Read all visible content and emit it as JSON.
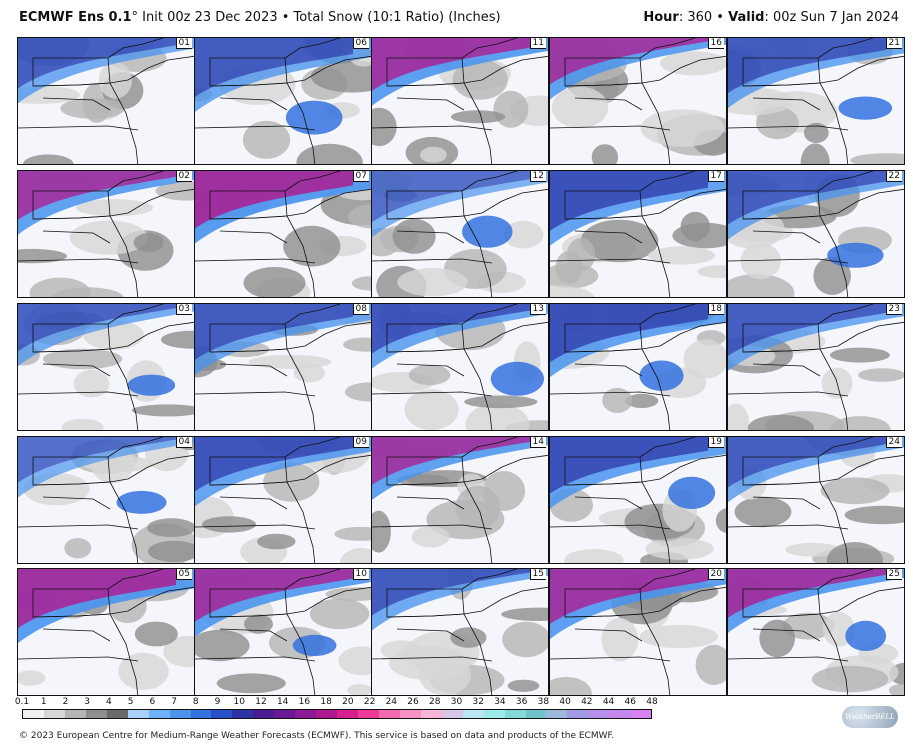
{
  "header": {
    "model": "ECMWF Ens 0.1",
    "degree": "°",
    "init_text": " Init 00z 23 Dec 2023 • Total Snow (10:1 Ratio) (Inches)",
    "hour_label": "Hour",
    "hour_value": ": 360 • ",
    "valid_label": "Valid",
    "valid_value": ": 00z Sun 7 Jan 2024"
  },
  "members": [
    "01",
    "06",
    "11",
    "16",
    "21",
    "02",
    "07",
    "12",
    "17",
    "22",
    "03",
    "08",
    "13",
    "18",
    "23",
    "04",
    "09",
    "14",
    "19",
    "24",
    "05",
    "10",
    "15",
    "20",
    "25"
  ],
  "member_intensity": [
    0.55,
    0.6,
    0.85,
    0.8,
    0.6,
    0.8,
    0.95,
    0.35,
    0.75,
    0.55,
    0.5,
    0.6,
    0.65,
    0.75,
    0.55,
    0.35,
    0.7,
    0.8,
    0.75,
    0.55,
    0.9,
    0.85,
    0.6,
    0.85,
    0.85
  ],
  "colorbar": {
    "ticks": [
      "0.1",
      "1",
      "2",
      "3",
      "4",
      "5",
      "6",
      "7",
      "8",
      "9",
      "10",
      "12",
      "14",
      "16",
      "18",
      "20",
      "22",
      "24",
      "26",
      "28",
      "30",
      "32",
      "34",
      "36",
      "38",
      "40",
      "42",
      "44",
      "46",
      "48"
    ],
    "colors": [
      "#f1f1f1",
      "#d7d7d7",
      "#b5b5b5",
      "#8f8f8f",
      "#6a6a6a",
      "#a9d1ff",
      "#6fb2f7",
      "#4a94ee",
      "#3472df",
      "#2850c8",
      "#2d33a6",
      "#4a1c94",
      "#6b1a96",
      "#8c1a96",
      "#b0188e",
      "#d51f8c",
      "#ee3b9a",
      "#f46aae",
      "#f591c3",
      "#f6b4d6",
      "#d7c6e8",
      "#b9e6f2",
      "#9fe9e9",
      "#86d8d8",
      "#70c2cb",
      "#a0b7dd",
      "#a49be5",
      "#b491ea",
      "#c387ee",
      "#d680f2"
    ]
  },
  "footer": "© 2023 European Centre for Medium-Range Weather Forecasts (ECMWF). This service is based on data and products of the ECMWF.",
  "logo_text": "WeatherBELL"
}
